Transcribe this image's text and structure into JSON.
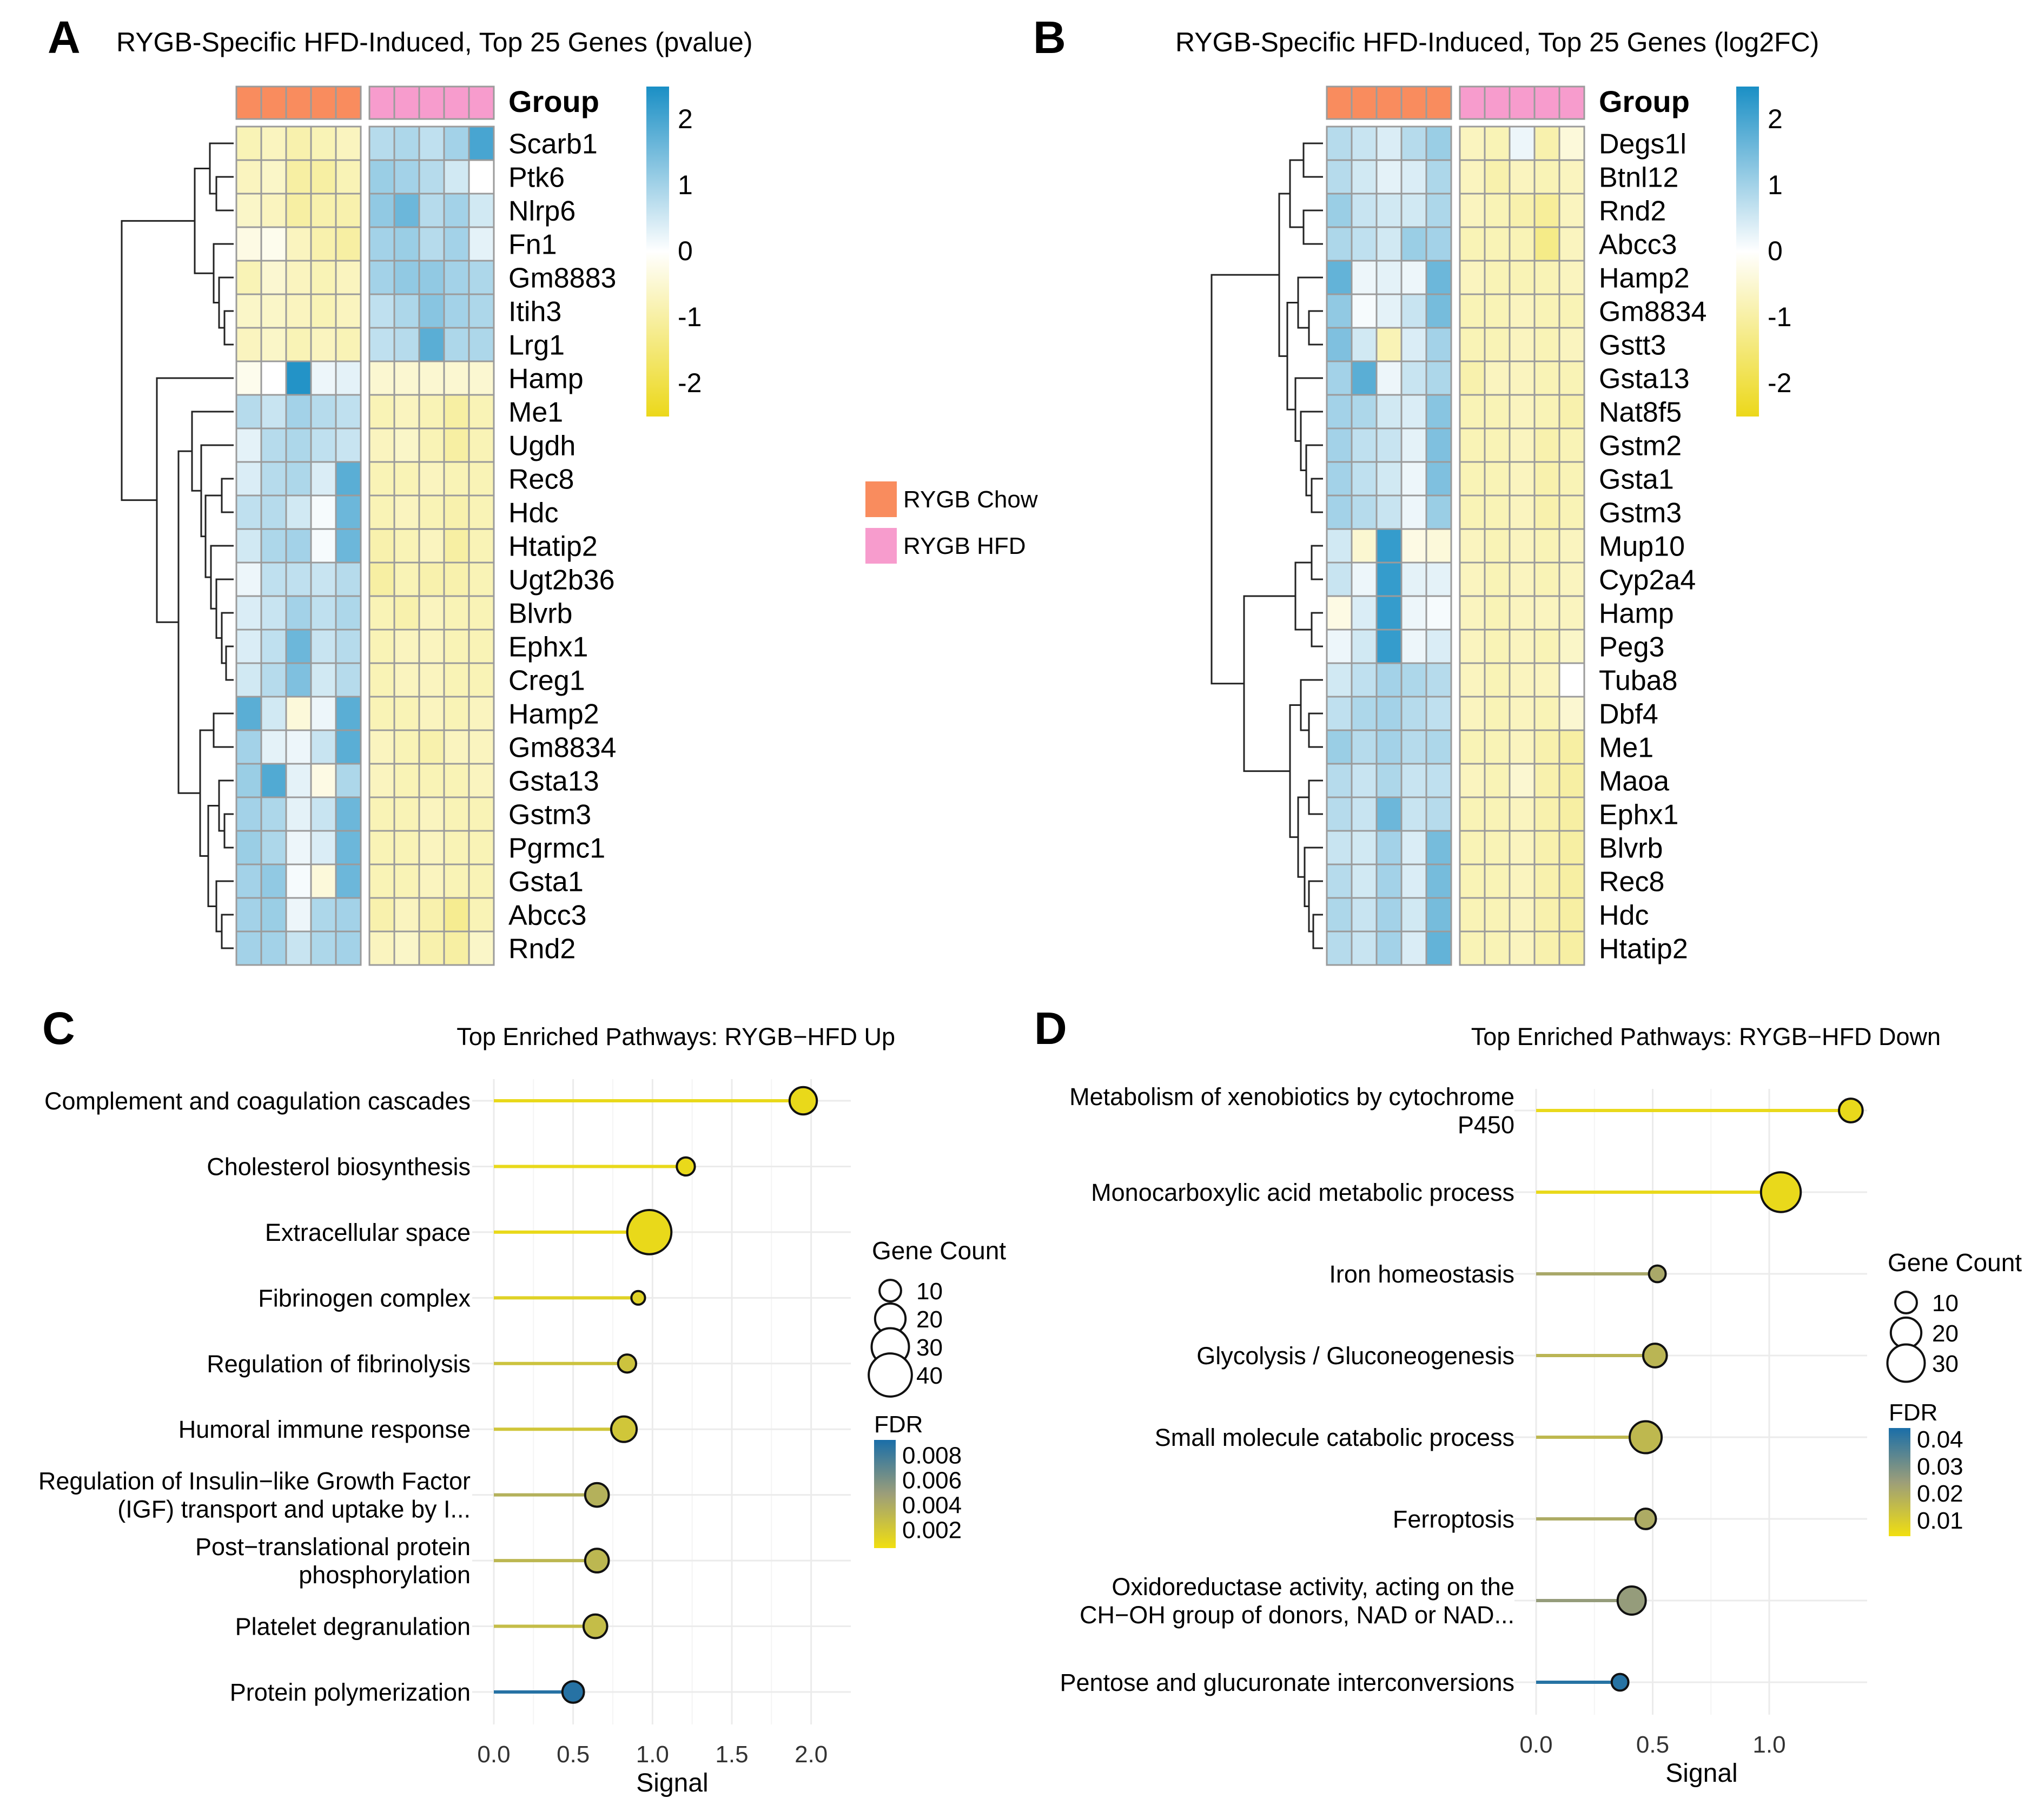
{
  "colors": {
    "chow": "#f98c5e",
    "hfd": "#f79ccd",
    "scale_high": "#1a8fc5",
    "scale_mid": "#ffffff",
    "scale_low": "#ecd81a",
    "grid": "#ebebeb",
    "cell_border": "#9b9b9b"
  },
  "legend": {
    "chow_label": "RYGB Chow",
    "hfd_label": "RYGB HFD"
  },
  "chart_data": [
    {
      "type": "heatmap",
      "panel": "A",
      "title": "RYGB-Specific HFD-Induced, Top 25 Genes (pvalue)",
      "group_header": "Group",
      "groups": [
        "chow",
        "chow",
        "chow",
        "chow",
        "chow",
        "hfd",
        "hfd",
        "hfd",
        "hfd",
        "hfd"
      ],
      "scale_ticks": [
        "2",
        "1",
        "0",
        "-1",
        "-2"
      ],
      "scale_range": [
        -2.5,
        2.5
      ],
      "genes": [
        "Scarb1",
        "Ptk6",
        "Nlrp6",
        "Fn1",
        "Gm8883",
        "Itih3",
        "Lrg1",
        "Hamp",
        "Me1",
        "Ugdh",
        "Rec8",
        "Hdc",
        "Htatip2",
        "Ugt2b36",
        "Blvrb",
        "Ephx1",
        "Creg1",
        "Hamp2",
        "Gm8834",
        "Gsta13",
        "Gstm3",
        "Pgrmc1",
        "Gsta1",
        "Abcc3",
        "Rnd2"
      ],
      "values": [
        [
          -0.8,
          -0.7,
          -0.9,
          -0.8,
          -0.7,
          0.8,
          0.9,
          0.7,
          1.0,
          2.0
        ],
        [
          -0.7,
          -0.6,
          -1.0,
          -1.0,
          -0.8,
          1.1,
          1.0,
          0.8,
          0.5,
          0.0
        ],
        [
          -0.6,
          -0.7,
          -1.0,
          -0.9,
          -0.9,
          1.2,
          1.6,
          0.8,
          1.0,
          0.5
        ],
        [
          -0.3,
          -0.2,
          -0.7,
          -0.9,
          -1.0,
          1.0,
          1.1,
          0.8,
          1.0,
          0.3
        ],
        [
          -0.8,
          -0.5,
          -0.7,
          -0.8,
          -0.7,
          1.0,
          1.2,
          1.2,
          1.0,
          0.9
        ],
        [
          -0.6,
          -0.6,
          -0.7,
          -0.8,
          -0.7,
          0.7,
          0.9,
          1.3,
          1.0,
          0.9
        ],
        [
          -0.7,
          -0.6,
          -0.8,
          -0.7,
          -0.8,
          0.7,
          0.8,
          1.8,
          0.9,
          0.9
        ],
        [
          -0.2,
          0.0,
          2.4,
          0.2,
          0.3,
          -0.5,
          -0.5,
          -0.5,
          -0.5,
          -0.5
        ],
        [
          0.8,
          0.6,
          1.0,
          0.8,
          0.7,
          -0.8,
          -0.7,
          -0.8,
          -1.0,
          -0.8
        ],
        [
          0.3,
          0.8,
          0.9,
          0.7,
          0.6,
          -0.7,
          -0.6,
          -0.8,
          -1.0,
          -0.8
        ],
        [
          0.4,
          0.8,
          0.9,
          0.4,
          1.8,
          -0.8,
          -0.8,
          -0.7,
          -0.8,
          -0.8
        ],
        [
          0.7,
          0.8,
          0.5,
          0.1,
          1.6,
          -0.8,
          -0.7,
          -0.8,
          -0.9,
          -0.8
        ],
        [
          0.5,
          0.9,
          1.0,
          0.1,
          1.6,
          -0.9,
          -0.8,
          -0.7,
          -1.0,
          -0.8
        ],
        [
          0.2,
          0.7,
          0.7,
          0.6,
          0.8,
          -1.0,
          -0.8,
          -0.9,
          -0.9,
          -0.8
        ],
        [
          0.4,
          0.6,
          1.0,
          0.7,
          0.9,
          -0.8,
          -0.9,
          -0.7,
          -0.8,
          -0.8
        ],
        [
          0.4,
          0.7,
          1.6,
          0.6,
          0.8,
          -0.8,
          -0.7,
          -0.7,
          -0.8,
          -0.8
        ],
        [
          0.5,
          0.8,
          1.4,
          0.5,
          0.8,
          -0.8,
          -0.7,
          -0.7,
          -0.8,
          -0.8
        ],
        [
          1.8,
          0.5,
          -0.4,
          0.2,
          1.8,
          -0.8,
          -0.8,
          -0.7,
          -0.8,
          -0.7
        ],
        [
          1.0,
          0.3,
          0.2,
          0.6,
          1.8,
          -0.7,
          -0.8,
          -0.9,
          -0.7,
          -0.7
        ],
        [
          1.1,
          1.9,
          0.3,
          -0.3,
          0.9,
          -0.7,
          -0.8,
          -0.8,
          -0.8,
          -0.7
        ],
        [
          1.0,
          0.9,
          0.3,
          0.6,
          1.6,
          -0.8,
          -0.8,
          -0.7,
          -0.8,
          -0.8
        ],
        [
          1.1,
          0.9,
          0.2,
          0.4,
          1.6,
          -0.8,
          -0.8,
          -0.7,
          -0.8,
          -0.8
        ],
        [
          1.0,
          1.2,
          0.1,
          -0.4,
          1.6,
          -0.8,
          -0.8,
          -0.7,
          -0.8,
          -0.8
        ],
        [
          1.0,
          1.1,
          0.2,
          0.9,
          1.0,
          -0.9,
          -0.7,
          -0.9,
          -1.2,
          -0.8
        ],
        [
          1.0,
          1.0,
          0.6,
          0.9,
          1.0,
          -0.7,
          -0.6,
          -0.9,
          -1.0,
          -0.6
        ]
      ]
    },
    {
      "type": "heatmap",
      "panel": "B",
      "title": "RYGB-Specific HFD-Induced, Top 25 Genes (log2FC)",
      "group_header": "Group",
      "groups": [
        "chow",
        "chow",
        "chow",
        "chow",
        "chow",
        "hfd",
        "hfd",
        "hfd",
        "hfd",
        "hfd"
      ],
      "scale_ticks": [
        "2",
        "1",
        "0",
        "-1",
        "-2"
      ],
      "scale_range": [
        -2.5,
        2.5
      ],
      "genes": [
        "Degs1l",
        "Btnl12",
        "Rnd2",
        "Abcc3",
        "Hamp2",
        "Gm8834",
        "Gstt3",
        "Gsta13",
        "Nat8f5",
        "Gstm2",
        "Gsta1",
        "Gstm3",
        "Mup10",
        "Cyp2a4",
        "Hamp",
        "Peg3",
        "Tuba8",
        "Dbf4",
        "Me1",
        "Maoa",
        "Ephx1",
        "Blvrb",
        "Rec8",
        "Hdc",
        "Htatip2"
      ],
      "values": [
        [
          0.8,
          0.6,
          0.4,
          0.8,
          1.1,
          -0.7,
          -0.8,
          0.2,
          -0.9,
          -0.4
        ],
        [
          0.8,
          0.5,
          0.3,
          0.4,
          0.9,
          -0.7,
          -0.9,
          -0.7,
          -0.8,
          -0.7
        ],
        [
          1.1,
          0.6,
          0.5,
          0.5,
          0.9,
          -0.7,
          -0.8,
          -0.9,
          -1.1,
          -0.7
        ],
        [
          0.9,
          0.7,
          0.5,
          1.1,
          1.0,
          -0.8,
          -0.8,
          -0.8,
          -1.3,
          -0.7
        ],
        [
          1.7,
          0.2,
          0.3,
          0.2,
          1.6,
          -0.7,
          -0.8,
          -0.8,
          -0.8,
          -0.7
        ],
        [
          1.2,
          0.1,
          0.3,
          0.6,
          1.5,
          -0.8,
          -0.8,
          -0.7,
          -0.8,
          -0.8
        ],
        [
          1.4,
          0.5,
          -0.8,
          0.4,
          1.0,
          -0.8,
          -0.8,
          -0.7,
          -0.8,
          -0.7
        ],
        [
          1.0,
          1.8,
          0.2,
          0.6,
          0.9,
          -0.9,
          -0.7,
          -0.7,
          -0.8,
          -0.8
        ],
        [
          1.0,
          0.9,
          0.5,
          0.4,
          1.3,
          -0.8,
          -0.8,
          -0.7,
          -0.8,
          -0.9
        ],
        [
          1.0,
          0.7,
          0.6,
          0.3,
          1.4,
          -0.8,
          -0.8,
          -0.7,
          -0.9,
          -0.8
        ],
        [
          1.0,
          0.7,
          0.5,
          0.2,
          1.4,
          -0.8,
          -0.8,
          -0.7,
          -0.9,
          -0.8
        ],
        [
          1.0,
          0.8,
          0.6,
          0.2,
          1.1,
          -0.8,
          -0.8,
          -0.7,
          -0.9,
          -0.8
        ],
        [
          0.5,
          -0.5,
          2.2,
          -0.3,
          -0.4,
          -0.7,
          -0.8,
          -0.7,
          -0.8,
          -0.7
        ],
        [
          0.6,
          0.2,
          2.2,
          0.3,
          0.3,
          -0.7,
          -0.8,
          -0.7,
          -0.8,
          -0.7
        ],
        [
          -0.3,
          0.4,
          2.2,
          0.2,
          0.1,
          -0.7,
          -0.8,
          -0.7,
          -0.7,
          -0.7
        ],
        [
          0.2,
          0.5,
          2.2,
          0.2,
          0.4,
          -0.7,
          -0.8,
          -0.7,
          -0.8,
          -0.6
        ],
        [
          0.5,
          0.7,
          1.0,
          0.9,
          0.8,
          -0.7,
          -0.8,
          -0.7,
          -0.7,
          0.0
        ],
        [
          0.7,
          0.9,
          1.0,
          0.8,
          0.7,
          -0.7,
          -0.8,
          -0.7,
          -0.8,
          -0.5
        ],
        [
          1.1,
          0.8,
          1.0,
          0.8,
          0.9,
          -0.8,
          -0.8,
          -0.7,
          -0.9,
          -1.0
        ],
        [
          0.8,
          0.6,
          0.9,
          0.6,
          0.7,
          -0.7,
          -0.8,
          -0.5,
          -0.9,
          -1.0
        ],
        [
          0.8,
          0.6,
          1.6,
          0.6,
          0.8,
          -0.8,
          -0.8,
          -0.7,
          -0.9,
          -1.0
        ],
        [
          0.6,
          0.5,
          1.0,
          0.4,
          1.5,
          -0.8,
          -0.8,
          -0.7,
          -0.9,
          -1.0
        ],
        [
          0.8,
          0.5,
          1.0,
          0.4,
          1.5,
          -0.8,
          -0.8,
          -0.7,
          -0.9,
          -1.0
        ],
        [
          0.9,
          0.6,
          1.0,
          0.5,
          1.5,
          -0.8,
          -0.8,
          -0.7,
          -0.9,
          -1.0
        ],
        [
          0.8,
          0.6,
          1.0,
          0.4,
          1.7,
          -0.8,
          -0.8,
          -0.7,
          -0.9,
          -1.0
        ]
      ]
    },
    {
      "type": "scatter",
      "subtype": "lollipop",
      "panel": "C",
      "title": "Top Enriched Pathways: RYGB−HFD Up",
      "xlabel": "Signal",
      "xlim": [
        0,
        2.25
      ],
      "xticks": [
        "0.0",
        "0.5",
        "1.0",
        "1.5",
        "2.0"
      ],
      "xtick_values": [
        0,
        0.5,
        1.0,
        1.5,
        2.0
      ],
      "size_legend": {
        "title": "Gene Count",
        "labels": [
          "10",
          "20",
          "30",
          "40"
        ],
        "values": [
          10,
          20,
          30,
          40
        ]
      },
      "color_legend": {
        "title": "FDR",
        "labels": [
          "0.008",
          "0.006",
          "0.004",
          "0.002"
        ],
        "values": [
          0.008,
          0.006,
          0.004,
          0.002
        ],
        "range": [
          0.0005,
          0.0092
        ]
      },
      "items": [
        {
          "label": [
            "Complement and coagulation cascades"
          ],
          "signal": 1.95,
          "count": 16,
          "fdr": 0.0009
        },
        {
          "label": [
            "Cholesterol biosynthesis"
          ],
          "signal": 1.21,
          "count": 7,
          "fdr": 0.0009
        },
        {
          "label": [
            "Extracellular space"
          ],
          "signal": 0.98,
          "count": 42,
          "fdr": 0.0009
        },
        {
          "label": [
            "Fibrinogen complex"
          ],
          "signal": 0.91,
          "count": 4,
          "fdr": 0.0014
        },
        {
          "label": [
            "Regulation of fibrinolysis"
          ],
          "signal": 0.84,
          "count": 7,
          "fdr": 0.0024
        },
        {
          "label": [
            "Humoral immune response"
          ],
          "signal": 0.82,
          "count": 14,
          "fdr": 0.0022
        },
        {
          "label": [
            "Regulation of Insulin−like Growth Factor",
            "(IGF) transport and uptake by I..."
          ],
          "signal": 0.65,
          "count": 12,
          "fdr": 0.0036
        },
        {
          "label": [
            "Post−translational protein",
            "phosphorylation"
          ],
          "signal": 0.65,
          "count": 12,
          "fdr": 0.0032
        },
        {
          "label": [
            "Platelet degranulation"
          ],
          "signal": 0.64,
          "count": 12,
          "fdr": 0.0028
        },
        {
          "label": [
            "Protein polymerization"
          ],
          "signal": 0.5,
          "count": 10,
          "fdr": 0.0088
        }
      ]
    },
    {
      "type": "scatter",
      "subtype": "lollipop",
      "panel": "D",
      "title": "Top Enriched Pathways: RYGB−HFD Down",
      "xlabel": "Signal",
      "xlim": [
        0,
        1.42
      ],
      "xticks": [
        "0.0",
        "0.5",
        "1.0"
      ],
      "xtick_values": [
        0,
        0.5,
        1.0
      ],
      "size_legend": {
        "title": "Gene Count",
        "labels": [
          "10",
          "20",
          "30"
        ],
        "values": [
          10,
          20,
          30
        ]
      },
      "color_legend": {
        "title": "FDR",
        "labels": [
          "0.04",
          "0.03",
          "0.02",
          "0.01"
        ],
        "values": [
          0.04,
          0.03,
          0.02,
          0.01
        ],
        "range": [
          0.004,
          0.044
        ]
      },
      "items": [
        {
          "label": [
            "Metabolism of xenobiotics by cytochrome",
            "P450"
          ],
          "signal": 1.35,
          "count": 12,
          "fdr": 0.006
        },
        {
          "label": [
            "Monocarboxylic acid metabolic process"
          ],
          "signal": 1.05,
          "count": 34,
          "fdr": 0.006
        },
        {
          "label": [
            "Iron homeostasis"
          ],
          "signal": 0.52,
          "count": 6,
          "fdr": 0.021
        },
        {
          "label": [
            "Glycolysis / Gluconeogenesis"
          ],
          "signal": 0.51,
          "count": 12,
          "fdr": 0.017
        },
        {
          "label": [
            "Small molecule catabolic process"
          ],
          "signal": 0.47,
          "count": 22,
          "fdr": 0.016
        },
        {
          "label": [
            "Ferroptosis"
          ],
          "signal": 0.47,
          "count": 9,
          "fdr": 0.02
        },
        {
          "label": [
            "Oxidoreductase activity, acting on the",
            "CH−OH group of donors, NAD or NAD..."
          ],
          "signal": 0.41,
          "count": 17,
          "fdr": 0.025
        },
        {
          "label": [
            "Pentose and glucuronate interconversions"
          ],
          "signal": 0.36,
          "count": 6,
          "fdr": 0.042
        }
      ]
    }
  ],
  "panels": {
    "A": {
      "letter": "A"
    },
    "B": {
      "letter": "B"
    },
    "C": {
      "letter": "C"
    },
    "D": {
      "letter": "D"
    }
  }
}
